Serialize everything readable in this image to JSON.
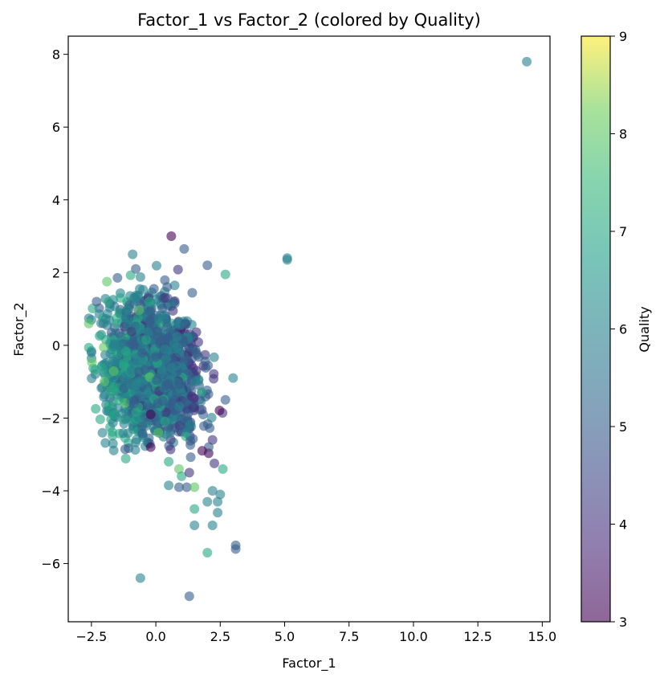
{
  "chart_data": {
    "type": "scatter",
    "title": "Factor_1 vs Factor_2 (colored by Quality)",
    "xlabel": "Factor_1",
    "ylabel": "Factor_2",
    "xlim": [
      -3.4,
      15.3
    ],
    "ylim": [
      -7.6,
      8.5
    ],
    "xticks": [
      "−2.5",
      "0.0",
      "2.5",
      "5.0",
      "7.5",
      "10.0",
      "12.5",
      "15.0"
    ],
    "xtick_values": [
      -2.5,
      0,
      2.5,
      5,
      7.5,
      10,
      12.5,
      15
    ],
    "yticks": [
      "−6",
      "−4",
      "−2",
      "0",
      "2",
      "4",
      "6",
      "8"
    ],
    "ytick_values": [
      -6,
      -4,
      -2,
      0,
      2,
      4,
      6,
      8
    ],
    "grid": false,
    "colorbar": {
      "label": "Quality",
      "min": 3,
      "max": 9,
      "ticks": [
        "3",
        "4",
        "5",
        "6",
        "7",
        "8",
        "9"
      ],
      "tick_values": [
        3,
        4,
        5,
        6,
        7,
        8,
        9
      ],
      "colormap": "viridis"
    },
    "point_alpha": 0.6,
    "points": [
      {
        "x": 14.4,
        "y": 7.8,
        "q": 6
      },
      {
        "x": 0.6,
        "y": 3.0,
        "q": 3
      },
      {
        "x": 1.1,
        "y": 2.65,
        "q": 5
      },
      {
        "x": 5.1,
        "y": 2.4,
        "q": 6
      },
      {
        "x": 5.1,
        "y": 2.35,
        "q": 6
      },
      {
        "x": -0.9,
        "y": 2.5,
        "q": 6
      },
      {
        "x": 2.7,
        "y": 1.95,
        "q": 7
      },
      {
        "x": 2.0,
        "y": 2.2,
        "q": 5
      },
      {
        "x": -1.9,
        "y": 1.75,
        "q": 8
      },
      {
        "x": -2.3,
        "y": 1.2,
        "q": 5
      },
      {
        "x": -2.5,
        "y": 0.7,
        "q": 6
      },
      {
        "x": -2.6,
        "y": 0.6,
        "q": 8
      },
      {
        "x": -2.5,
        "y": -0.2,
        "q": 6
      },
      {
        "x": -2.1,
        "y": -0.6,
        "q": 7
      },
      {
        "x": -2.0,
        "y": -1.0,
        "q": 8
      },
      {
        "x": 3.0,
        "y": -0.9,
        "q": 6
      },
      {
        "x": 2.7,
        "y": -1.5,
        "q": 5
      },
      {
        "x": 0.1,
        "y": -2.4,
        "q": 8
      },
      {
        "x": -0.2,
        "y": -2.8,
        "q": 3
      },
      {
        "x": -0.2,
        "y": -1.9,
        "q": 3
      },
      {
        "x": 0.5,
        "y": -3.2,
        "q": 7
      },
      {
        "x": 0.9,
        "y": -3.4,
        "q": 8
      },
      {
        "x": 1.0,
        "y": -3.6,
        "q": 7
      },
      {
        "x": 1.8,
        "y": -2.9,
        "q": 3
      },
      {
        "x": 2.2,
        "y": -2.6,
        "q": 4
      },
      {
        "x": 2.6,
        "y": -3.4,
        "q": 7
      },
      {
        "x": 1.3,
        "y": -3.5,
        "q": 4
      },
      {
        "x": 0.5,
        "y": -3.85,
        "q": 6
      },
      {
        "x": 0.9,
        "y": -3.9,
        "q": 5
      },
      {
        "x": 1.2,
        "y": -3.9,
        "q": 5
      },
      {
        "x": 1.5,
        "y": -3.9,
        "q": 8
      },
      {
        "x": 2.2,
        "y": -4.0,
        "q": 6
      },
      {
        "x": 2.5,
        "y": -4.1,
        "q": 6
      },
      {
        "x": 2.0,
        "y": -4.3,
        "q": 6
      },
      {
        "x": 2.4,
        "y": -4.3,
        "q": 6
      },
      {
        "x": 1.5,
        "y": -4.5,
        "q": 7
      },
      {
        "x": 2.4,
        "y": -4.6,
        "q": 6
      },
      {
        "x": 1.5,
        "y": -4.95,
        "q": 6
      },
      {
        "x": 2.2,
        "y": -4.95,
        "q": 6
      },
      {
        "x": 2.0,
        "y": -5.7,
        "q": 7
      },
      {
        "x": 3.1,
        "y": -5.5,
        "q": 5
      },
      {
        "x": 3.1,
        "y": -5.6,
        "q": 5
      },
      {
        "x": -0.6,
        "y": -6.4,
        "q": 6
      },
      {
        "x": 1.3,
        "y": -6.9,
        "q": 5
      }
    ],
    "cluster": {
      "description": "dense mass of overlapping points",
      "x_range": [
        -2.6,
        2.9
      ],
      "y_range": [
        -3.5,
        2.2
      ],
      "count": 1500
    }
  }
}
